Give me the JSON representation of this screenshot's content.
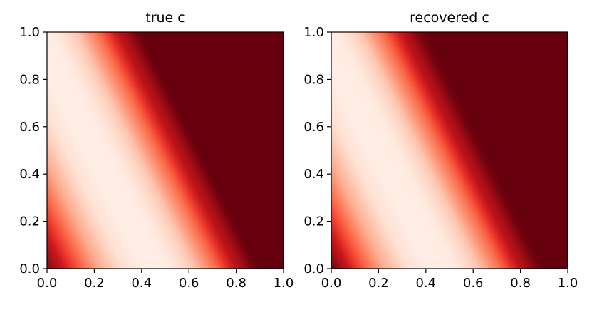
{
  "figure": {
    "panels": [
      {
        "title": "true c"
      },
      {
        "title": "recovered c"
      }
    ]
  },
  "chart_data": [
    {
      "type": "heatmap",
      "title": "true c",
      "xlabel": "",
      "ylabel": "",
      "xlim": [
        0.0,
        1.0
      ],
      "ylim": [
        0.0,
        1.0
      ],
      "xticks": [
        "0.0",
        "0.2",
        "0.4",
        "0.6",
        "0.8",
        "1.0"
      ],
      "yticks": [
        "0.0",
        "0.2",
        "0.4",
        "0.6",
        "0.8",
        "1.0"
      ],
      "colormap": "Reds",
      "grid": false,
      "field": {
        "description_variable": "s = x + 0.5*y",
        "s_to_color_stops": [
          {
            "s": 0.0,
            "value": 0.95
          },
          {
            "s": 0.04,
            "value": 0.85
          },
          {
            "s": 0.12,
            "value": 0.6
          },
          {
            "s": 0.22,
            "value": 0.3
          },
          {
            "s": 0.32,
            "value": 0.12
          },
          {
            "s": 0.42,
            "value": 0.04
          },
          {
            "s": 0.52,
            "value": 0.06
          },
          {
            "s": 0.62,
            "value": 0.2
          },
          {
            "s": 0.72,
            "value": 0.5
          },
          {
            "s": 0.8,
            "value": 0.8
          },
          {
            "s": 0.87,
            "value": 0.97
          },
          {
            "s": 0.9,
            "value": 1.0
          },
          {
            "s": 1.5,
            "value": 1.0
          }
        ]
      }
    },
    {
      "type": "heatmap",
      "title": "recovered c",
      "xlabel": "",
      "ylabel": "",
      "xlim": [
        0.0,
        1.0
      ],
      "ylim": [
        0.0,
        1.0
      ],
      "xticks": [
        "0.0",
        "0.2",
        "0.4",
        "0.6",
        "0.8",
        "1.0"
      ],
      "yticks": [
        "0.0",
        "0.2",
        "0.4",
        "0.6",
        "0.8",
        "1.0"
      ],
      "colormap": "Reds",
      "grid": false,
      "field": {
        "description_variable": "s = x + 0.5*y",
        "s_to_color_stops": [
          {
            "s": 0.0,
            "value": 1.0
          },
          {
            "s": 0.04,
            "value": 0.87
          },
          {
            "s": 0.12,
            "value": 0.6
          },
          {
            "s": 0.22,
            "value": 0.3
          },
          {
            "s": 0.32,
            "value": 0.12
          },
          {
            "s": 0.42,
            "value": 0.04
          },
          {
            "s": 0.52,
            "value": 0.06
          },
          {
            "s": 0.62,
            "value": 0.2
          },
          {
            "s": 0.72,
            "value": 0.5
          },
          {
            "s": 0.8,
            "value": 0.8
          },
          {
            "s": 0.87,
            "value": 0.97
          },
          {
            "s": 0.9,
            "value": 1.0
          },
          {
            "s": 1.5,
            "value": 1.0
          }
        ]
      }
    }
  ]
}
